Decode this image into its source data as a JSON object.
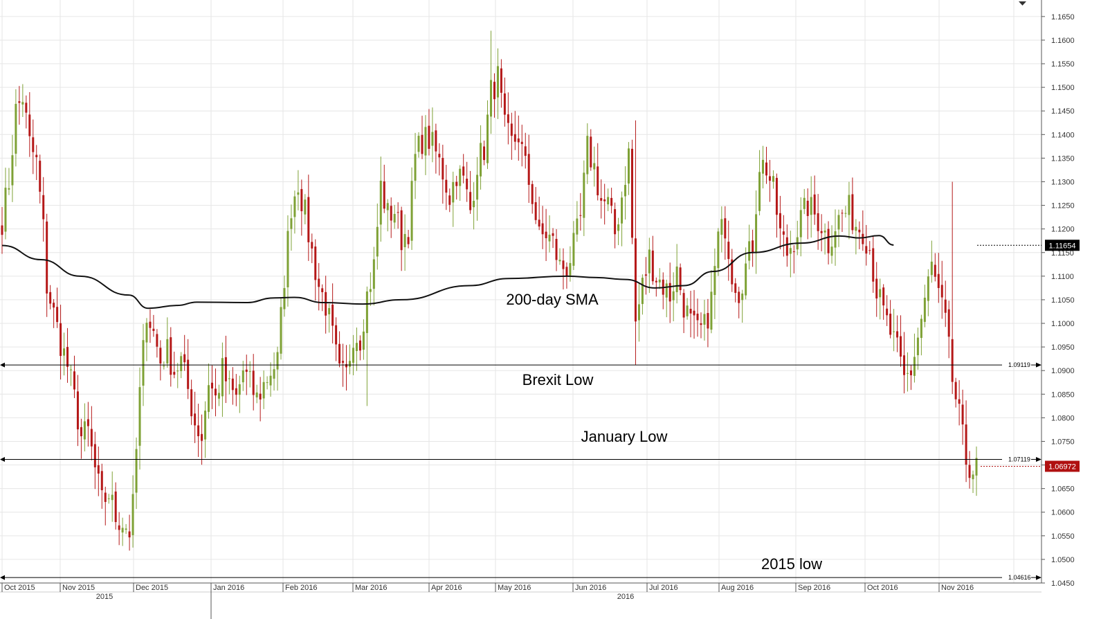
{
  "chart_data": {
    "type": "candlestick",
    "title": "",
    "y_range": [
      1.045,
      1.1685
    ],
    "y_ticks": [
      "1.1650",
      "1.1600",
      "1.1550",
      "1.1500",
      "1.1450",
      "1.1400",
      "1.1350",
      "1.1300",
      "1.1250",
      "1.1200",
      "1.1150",
      "1.1100",
      "1.1050",
      "1.1000",
      "1.0950",
      "1.0900",
      "1.0850",
      "1.0800",
      "1.0750",
      "1.0700",
      "1.0650",
      "1.0600",
      "1.0550",
      "1.0500",
      "1.0450"
    ],
    "x_months": [
      {
        "label": "Oct 2015",
        "date": "2015-10-01"
      },
      {
        "label": "Nov 2015",
        "date": "2015-11-01"
      },
      {
        "label": "Dec 2015",
        "date": "2015-12-01"
      },
      {
        "label": "Jan 2016",
        "date": "2016-01-01"
      },
      {
        "label": "Feb 2016",
        "date": "2016-02-01"
      },
      {
        "label": "Mar 2016",
        "date": "2016-03-01"
      },
      {
        "label": "Apr 2016",
        "date": "2016-04-01"
      },
      {
        "label": "May 2016",
        "date": "2016-05-01"
      },
      {
        "label": "Jun 2016",
        "date": "2016-06-01"
      },
      {
        "label": "Jul 2016",
        "date": "2016-07-01"
      },
      {
        "label": "Aug 2016",
        "date": "2016-08-01"
      },
      {
        "label": "Sep 2016",
        "date": "2016-09-01"
      },
      {
        "label": "Oct 2016",
        "date": "2016-10-01"
      },
      {
        "label": "Nov 2016",
        "date": "2016-11-01"
      }
    ],
    "x_years": [
      "2015",
      "2016"
    ],
    "horizontal_levels": [
      {
        "value": 1.09119,
        "label": "1.09119",
        "annotation": "Brexit Low"
      },
      {
        "value": 1.07119,
        "label": "1.07119",
        "annotation": "January Low"
      },
      {
        "value": 1.04616,
        "label": "1.04616",
        "annotation": "2015 low"
      }
    ],
    "sma_label": "200-day SMA",
    "price_badges": [
      {
        "value": 1.11654,
        "label": "1.11654",
        "color": "#000000"
      },
      {
        "value": 1.06972,
        "label": "1.06972",
        "color": "#b01010"
      }
    ],
    "colors": {
      "up": "#7ea135",
      "down": "#b51818",
      "sma": "#111111",
      "grid": "#e6e6e6",
      "axis": "#555555"
    },
    "waypoints": [
      [
        0,
        1.122
      ],
      [
        2,
        1.13
      ],
      [
        4,
        1.145
      ],
      [
        6,
        1.148
      ],
      [
        8,
        1.138
      ],
      [
        10,
        1.134
      ],
      [
        12,
        1.12
      ],
      [
        13,
        1.108
      ],
      [
        15,
        1.102
      ],
      [
        17,
        1.096
      ],
      [
        19,
        1.091
      ],
      [
        21,
        1.084
      ],
      [
        23,
        1.076
      ],
      [
        25,
        1.077
      ],
      [
        27,
        1.069
      ],
      [
        29,
        1.062
      ],
      [
        31,
        1.064
      ],
      [
        33,
        1.059
      ],
      [
        35,
        1.058
      ],
      [
        37,
        1.056
      ],
      [
        38,
        1.061
      ],
      [
        40,
        1.085
      ],
      [
        42,
        1.103
      ],
      [
        44,
        1.098
      ],
      [
        46,
        1.092
      ],
      [
        48,
        1.094
      ],
      [
        50,
        1.09
      ],
      [
        52,
        1.092
      ],
      [
        54,
        1.086
      ],
      [
        56,
        1.079
      ],
      [
        58,
        1.076
      ],
      [
        60,
        1.088
      ],
      [
        62,
        1.084
      ],
      [
        64,
        1.09
      ],
      [
        66,
        1.086
      ],
      [
        68,
        1.084
      ],
      [
        70,
        1.09
      ],
      [
        72,
        1.087
      ],
      [
        74,
        1.084
      ],
      [
        76,
        1.087
      ],
      [
        78,
        1.09
      ],
      [
        80,
        1.092
      ],
      [
        82,
        1.11
      ],
      [
        84,
        1.125
      ],
      [
        86,
        1.13
      ],
      [
        88,
        1.123
      ],
      [
        90,
        1.115
      ],
      [
        92,
        1.108
      ],
      [
        94,
        1.104
      ],
      [
        96,
        1.097
      ],
      [
        98,
        1.089
      ],
      [
        100,
        1.089
      ],
      [
        102,
        1.098
      ],
      [
        104,
        1.097
      ],
      [
        106,
        1.106
      ],
      [
        108,
        1.112
      ],
      [
        110,
        1.129
      ],
      [
        112,
        1.123
      ],
      [
        114,
        1.124
      ],
      [
        116,
        1.118
      ],
      [
        118,
        1.12
      ],
      [
        120,
        1.135
      ],
      [
        122,
        1.139
      ],
      [
        124,
        1.139
      ],
      [
        126,
        1.136
      ],
      [
        128,
        1.132
      ],
      [
        130,
        1.127
      ],
      [
        132,
        1.132
      ],
      [
        134,
        1.13
      ],
      [
        136,
        1.124
      ],
      [
        138,
        1.134
      ],
      [
        140,
        1.137
      ],
      [
        142,
        1.149
      ],
      [
        144,
        1.152
      ],
      [
        146,
        1.141
      ],
      [
        148,
        1.138
      ],
      [
        150,
        1.14
      ],
      [
        152,
        1.133
      ],
      [
        154,
        1.127
      ],
      [
        156,
        1.118
      ],
      [
        158,
        1.119
      ],
      [
        160,
        1.117
      ],
      [
        162,
        1.112
      ],
      [
        164,
        1.112
      ],
      [
        166,
        1.116
      ],
      [
        168,
        1.122
      ],
      [
        170,
        1.137
      ],
      [
        172,
        1.133
      ],
      [
        174,
        1.126
      ],
      [
        176,
        1.125
      ],
      [
        178,
        1.119
      ],
      [
        180,
        1.127
      ],
      [
        182,
        1.136
      ],
      [
        184,
        1.1
      ],
      [
        186,
        1.108
      ],
      [
        188,
        1.114
      ],
      [
        190,
        1.11
      ],
      [
        192,
        1.108
      ],
      [
        194,
        1.106
      ],
      [
        196,
        1.111
      ],
      [
        198,
        1.104
      ],
      [
        200,
        1.1
      ],
      [
        202,
        1.098
      ],
      [
        204,
        1.099
      ],
      [
        206,
        1.105
      ],
      [
        208,
        1.118
      ],
      [
        210,
        1.121
      ],
      [
        212,
        1.111
      ],
      [
        214,
        1.107
      ],
      [
        216,
        1.112
      ],
      [
        218,
        1.117
      ],
      [
        220,
        1.134
      ],
      [
        222,
        1.133
      ],
      [
        224,
        1.128
      ],
      [
        226,
        1.119
      ],
      [
        228,
        1.115
      ],
      [
        230,
        1.118
      ],
      [
        232,
        1.122
      ],
      [
        234,
        1.125
      ],
      [
        236,
        1.123
      ],
      [
        238,
        1.121
      ],
      [
        240,
        1.117
      ],
      [
        242,
        1.121
      ],
      [
        244,
        1.123
      ],
      [
        246,
        1.124
      ],
      [
        248,
        1.121
      ],
      [
        250,
        1.12
      ],
      [
        252,
        1.116
      ],
      [
        254,
        1.107
      ],
      [
        256,
        1.102
      ],
      [
        258,
        1.098
      ],
      [
        260,
        1.094
      ],
      [
        262,
        1.088
      ],
      [
        264,
        1.09
      ],
      [
        266,
        1.097
      ],
      [
        268,
        1.105
      ],
      [
        270,
        1.112
      ],
      [
        272,
        1.106
      ],
      [
        274,
        1.1
      ],
      [
        276,
        1.088
      ],
      [
        278,
        1.08
      ],
      [
        280,
        1.071
      ],
      [
        282,
        1.069
      ]
    ],
    "sma": [
      [
        1.1165,
        0.0
      ],
      [
        1.1135,
        0.04
      ],
      [
        1.11,
        0.08
      ],
      [
        1.106,
        0.13
      ],
      [
        1.1032,
        0.15
      ],
      [
        1.1038,
        0.18
      ],
      [
        1.1045,
        0.2
      ],
      [
        1.1044,
        0.25
      ],
      [
        1.1054,
        0.28
      ],
      [
        1.1055,
        0.3
      ],
      [
        1.1044,
        0.33
      ],
      [
        1.1041,
        0.37
      ],
      [
        1.105,
        0.41
      ],
      [
        1.108,
        0.48
      ],
      [
        1.1095,
        0.52
      ],
      [
        1.11,
        0.58
      ],
      [
        1.1097,
        0.61
      ],
      [
        1.1093,
        0.64
      ],
      [
        1.1075,
        0.67
      ],
      [
        1.108,
        0.7
      ],
      [
        1.111,
        0.73
      ],
      [
        1.115,
        0.77
      ],
      [
        1.117,
        0.82
      ],
      [
        1.1185,
        0.86
      ],
      [
        1.1181,
        0.88
      ],
      [
        1.1186,
        0.9
      ],
      [
        1.1166,
        0.915
      ]
    ],
    "wick_spikes": [
      {
        "i": 142,
        "high": 1.162
      },
      {
        "i": 184,
        "low": 1.0912,
        "high": 1.143
      },
      {
        "i": 276,
        "high": 1.13
      },
      {
        "i": 38,
        "low": 1.0525
      },
      {
        "i": 106,
        "low": 1.0825
      }
    ]
  }
}
